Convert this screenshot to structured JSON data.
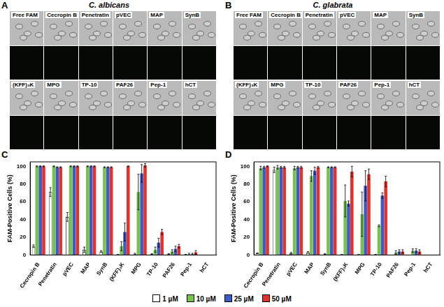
{
  "image_panels": [
    {
      "label": "A",
      "title": "C. albicans",
      "rows": [
        [
          "Free FAM",
          "Cecropin B",
          "Penetratin",
          "pVEC",
          "MAP",
          "SynB"
        ],
        [
          "(KFF)₃K",
          "MPG",
          "TP-10",
          "PAF26",
          "Pep-1",
          "hCT"
        ]
      ]
    },
    {
      "label": "B",
      "title": "C. glabrata",
      "rows": [
        [
          "Free FAM",
          "Cecropin B",
          "Penetratin",
          "pVEC",
          "MAP",
          "SynB"
        ],
        [
          "(KFF)₃K",
          "MPG",
          "TP-10",
          "PAF26",
          "Pep-1",
          "hCT"
        ]
      ]
    }
  ],
  "chart_data": [
    {
      "label": "C",
      "type": "bar",
      "y_label": "FAM-Positive Cells (%)",
      "categories": [
        "Cecropin B",
        "Penetratin",
        "pVEC",
        "MAP",
        "SynB",
        "(KFF)₃K",
        "MPG",
        "TP-10",
        "PAF26",
        "Pep-1",
        "hCT"
      ],
      "ylim": [
        0,
        105
      ],
      "yticks": [
        0,
        20,
        40,
        60,
        80,
        100
      ],
      "grid": false,
      "legend": "bottom",
      "series": [
        {
          "name": "1 µM",
          "color": "#ffffff",
          "values": [
            10,
            71,
            43,
            6,
            4,
            0.5,
            1,
            1,
            1,
            0.5,
            0
          ],
          "errors": [
            1.5,
            5,
            5,
            3,
            1,
            0.3,
            1,
            0.5,
            0.5,
            0.3,
            0
          ]
        },
        {
          "name": "10 µM",
          "color": "#77c24a",
          "values": [
            100,
            100,
            100,
            100,
            99,
            10,
            71,
            6,
            4,
            1,
            0
          ],
          "errors": [
            0.5,
            0.5,
            0.5,
            0.5,
            0.5,
            5,
            20,
            3,
            2,
            1,
            0
          ]
        },
        {
          "name": "25 µM",
          "color": "#3b5bc9",
          "values": [
            100,
            99,
            100,
            100,
            99,
            26,
            92,
            14,
            7,
            1,
            0
          ],
          "errors": [
            0.5,
            0.5,
            0.5,
            0.5,
            0.5,
            10,
            10,
            5,
            3,
            1,
            0
          ]
        },
        {
          "name": "50 µM",
          "color": "#e8302a",
          "values": [
            100,
            99,
            100,
            100,
            99,
            100,
            101,
            26,
            10,
            3,
            0
          ],
          "errors": [
            0.5,
            0.5,
            0.5,
            0.5,
            0.5,
            0.5,
            2,
            3,
            2,
            2,
            0
          ]
        }
      ]
    },
    {
      "label": "D",
      "type": "bar",
      "y_label": "FAM-Positive Cells (%)",
      "categories": [
        "Cecropin B",
        "Penetratin",
        "pVEC",
        "MAP",
        "SynB",
        "(KFF)₃K",
        "MPG",
        "TP-10",
        "PAF26",
        "Pep-1",
        "hCT"
      ],
      "ylim": [
        0,
        105
      ],
      "yticks": [
        0,
        20,
        40,
        60,
        80,
        100
      ],
      "grid": false,
      "series": [
        {
          "name": "1 µM",
          "color": "#ffffff",
          "values": [
            2,
            96,
            2,
            3,
            1,
            0.5,
            0.5,
            0.5,
            0,
            0,
            0
          ],
          "errors": [
            0.5,
            3,
            1,
            1,
            0.5,
            0.3,
            0.3,
            0.3,
            0,
            0,
            0
          ]
        },
        {
          "name": "10 µM",
          "color": "#77c24a",
          "values": [
            98,
            99,
            98,
            89,
            99,
            61,
            46,
            33,
            3,
            5,
            0
          ],
          "errors": [
            2,
            2,
            2,
            6,
            0.5,
            18,
            25,
            1,
            2,
            2,
            0
          ]
        },
        {
          "name": "25 µM",
          "color": "#3b5bc9",
          "values": [
            99,
            99,
            99,
            95,
            99,
            58,
            78,
            67,
            4,
            5,
            0
          ],
          "errors": [
            1,
            1,
            1,
            4,
            0.5,
            3,
            17,
            3,
            2,
            2,
            0
          ]
        },
        {
          "name": "50 µM",
          "color": "#e8302a",
          "values": [
            100,
            99,
            99,
            99,
            99,
            94,
            91,
            83,
            4,
            4,
            0
          ],
          "errors": [
            0.5,
            1,
            1,
            1,
            0.5,
            6,
            6,
            6,
            2,
            2,
            0
          ]
        }
      ]
    }
  ]
}
